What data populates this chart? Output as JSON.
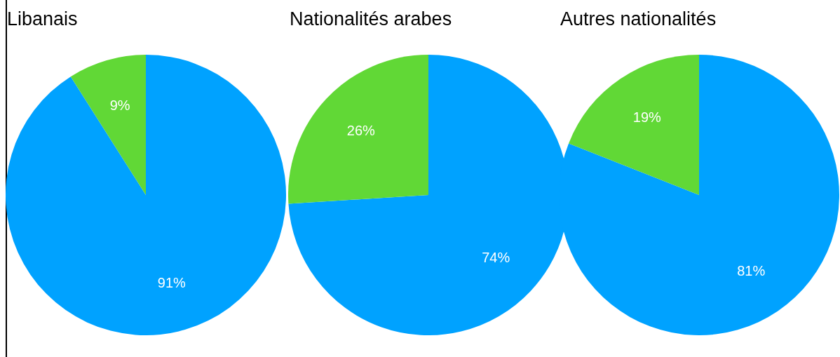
{
  "chart_data": [
    {
      "type": "pie",
      "title": "Libanais",
      "categories": [
        null,
        null
      ],
      "values": [
        91,
        9
      ],
      "colors": [
        "#00a2ff",
        "#61d836"
      ],
      "value_labels": [
        "91%",
        "9%"
      ],
      "legend": false
    },
    {
      "type": "pie",
      "title": "Nationalités arabes",
      "categories": [
        null,
        null
      ],
      "values": [
        74,
        26
      ],
      "colors": [
        "#00a2ff",
        "#61d836"
      ],
      "value_labels": [
        "74%",
        "26%"
      ],
      "legend": false
    },
    {
      "type": "pie",
      "title": "Autres nationalités",
      "categories": [
        null,
        null
      ],
      "values": [
        81,
        19
      ],
      "colors": [
        "#00a2ff",
        "#61d836"
      ],
      "value_labels": [
        "81%",
        "19%"
      ],
      "legend": false
    }
  ]
}
